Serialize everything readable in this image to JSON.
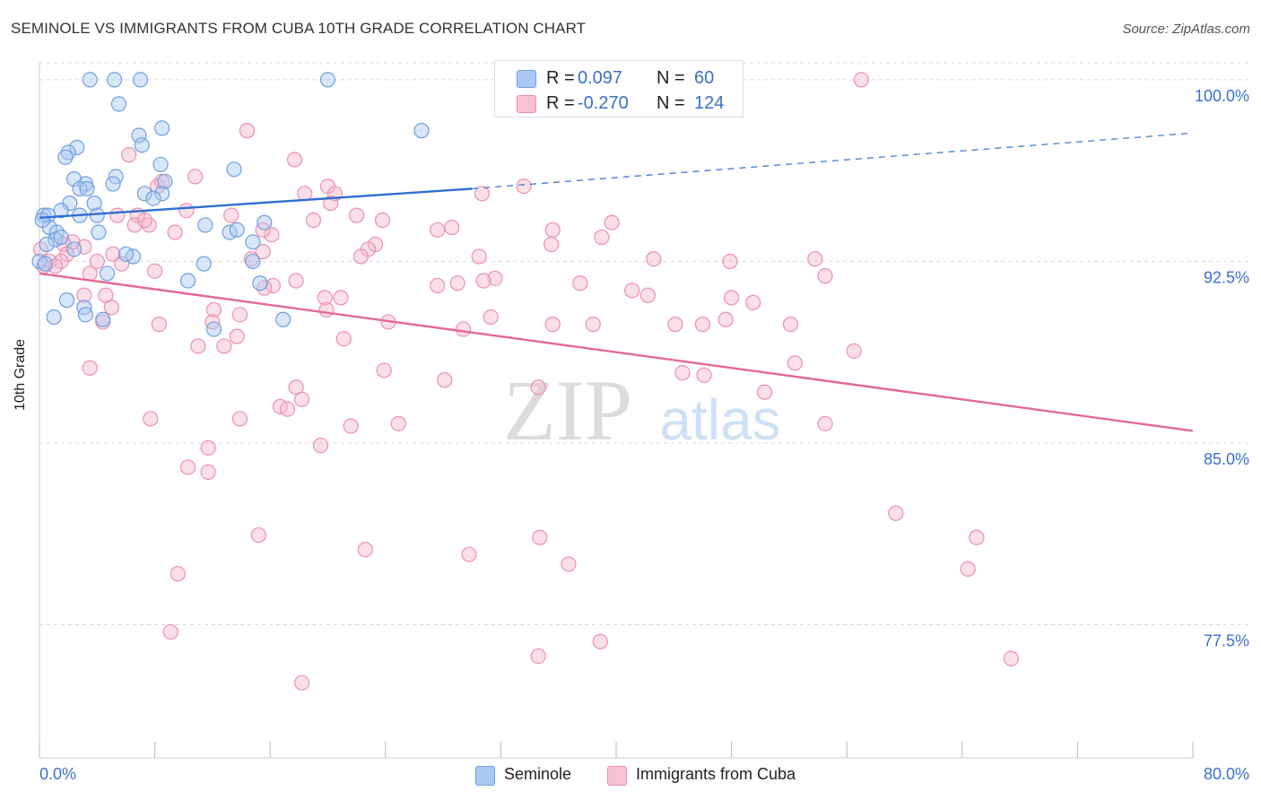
{
  "header": {
    "title": "SEMINOLE VS IMMIGRANTS FROM CUBA 10TH GRADE CORRELATION CHART",
    "source": "Source: ZipAtlas.com"
  },
  "watermark": {
    "zip": "ZIP",
    "atlas": "atlas"
  },
  "legend_top": {
    "rows": [
      {
        "r_label": "R =",
        "r_value": "0.097",
        "n_label": "N =",
        "n_value": "60"
      },
      {
        "r_label": "R =",
        "r_value": "-0.270",
        "n_label": "N =",
        "n_value": "124"
      }
    ]
  },
  "legend_bottom": {
    "items": [
      {
        "label": "Seminole"
      },
      {
        "label": "Immigrants from Cuba"
      }
    ]
  },
  "colors": {
    "blue_fill": "#a9c8f2",
    "blue_stroke": "#6e9fe0",
    "blue_line": "#2f6fd0",
    "pink_fill": "#f7b7cc",
    "pink_stroke": "#eb8fae",
    "pink_line": "#e3689a",
    "tick_label": "#3b6fce",
    "grid": "#d8d8d8"
  },
  "chart_data": {
    "type": "scatter",
    "title": "SEMINOLE VS IMMIGRANTS FROM CUBA 10TH GRADE CORRELATION CHART",
    "xlabel": "",
    "ylabel": "10th Grade",
    "xlim": [
      0,
      80
    ],
    "ylim": [
      72.0,
      100.7
    ],
    "x_tick_labels": [
      "0.0%",
      "80.0%"
    ],
    "y_ticks": [
      100.0,
      92.5,
      85.0,
      77.5
    ],
    "y_tick_labels": [
      "100.0%",
      "92.5%",
      "85.0%",
      "77.5%"
    ],
    "grid": "horizontal dashed",
    "legend_position": "top-center and bottom",
    "series": [
      {
        "name": "Seminole",
        "R": 0.097,
        "N": 60,
        "trend": {
          "x": [
            0.0,
            30.0,
            80.0
          ],
          "y": [
            94.3,
            95.5,
            97.8
          ],
          "solid_until_x": 30.0
        },
        "points": [
          [
            3.5,
            100.0
          ],
          [
            5.2,
            100.0
          ],
          [
            7.0,
            100.0
          ],
          [
            20.0,
            100.0
          ],
          [
            5.5,
            99.0
          ],
          [
            8.5,
            98.0
          ],
          [
            26.5,
            97.9
          ],
          [
            6.9,
            97.7
          ],
          [
            2.6,
            97.2
          ],
          [
            2.0,
            97.0
          ],
          [
            7.1,
            97.3
          ],
          [
            1.8,
            96.8
          ],
          [
            8.4,
            96.5
          ],
          [
            13.5,
            96.3
          ],
          [
            5.3,
            96.0
          ],
          [
            2.4,
            95.9
          ],
          [
            3.2,
            95.7
          ],
          [
            5.1,
            95.7
          ],
          [
            8.7,
            95.8
          ],
          [
            2.8,
            95.5
          ],
          [
            3.3,
            95.5
          ],
          [
            7.3,
            95.3
          ],
          [
            8.5,
            95.3
          ],
          [
            7.9,
            95.1
          ],
          [
            2.1,
            94.9
          ],
          [
            3.8,
            94.9
          ],
          [
            1.5,
            94.6
          ],
          [
            0.3,
            94.4
          ],
          [
            0.6,
            94.4
          ],
          [
            2.8,
            94.4
          ],
          [
            4.0,
            94.4
          ],
          [
            11.5,
            94.0
          ],
          [
            15.6,
            94.1
          ],
          [
            0.7,
            93.9
          ],
          [
            1.2,
            93.7
          ],
          [
            4.1,
            93.7
          ],
          [
            13.2,
            93.7
          ],
          [
            13.7,
            93.8
          ],
          [
            1.1,
            93.4
          ],
          [
            1.5,
            93.5
          ],
          [
            14.8,
            93.3
          ],
          [
            0.5,
            93.2
          ],
          [
            2.4,
            93.0
          ],
          [
            6.5,
            92.7
          ],
          [
            6.0,
            92.8
          ],
          [
            0.0,
            92.5
          ],
          [
            0.4,
            92.4
          ],
          [
            11.4,
            92.4
          ],
          [
            14.8,
            92.5
          ],
          [
            4.7,
            92.0
          ],
          [
            10.3,
            91.7
          ],
          [
            15.3,
            91.6
          ],
          [
            1.9,
            90.9
          ],
          [
            3.1,
            90.6
          ],
          [
            1.0,
            90.2
          ],
          [
            3.2,
            90.3
          ],
          [
            4.4,
            90.1
          ],
          [
            16.9,
            90.1
          ],
          [
            12.1,
            89.7
          ],
          [
            0.2,
            94.2
          ]
        ]
      },
      {
        "name": "Immigrants from Cuba",
        "R": -0.27,
        "N": 124,
        "trend": {
          "x": [
            0.0,
            80.0
          ],
          "y": [
            92.0,
            85.5
          ],
          "solid_until_x": 80.0
        },
        "points": [
          [
            57.0,
            100.0
          ],
          [
            14.4,
            97.9
          ],
          [
            6.2,
            96.9
          ],
          [
            17.7,
            96.7
          ],
          [
            10.8,
            96.0
          ],
          [
            8.2,
            95.6
          ],
          [
            8.5,
            95.8
          ],
          [
            20.0,
            95.6
          ],
          [
            33.6,
            95.6
          ],
          [
            18.4,
            95.3
          ],
          [
            20.5,
            95.3
          ],
          [
            30.7,
            95.3
          ],
          [
            20.2,
            94.9
          ],
          [
            10.2,
            94.6
          ],
          [
            5.4,
            94.4
          ],
          [
            6.8,
            94.4
          ],
          [
            13.3,
            94.4
          ],
          [
            22.0,
            94.4
          ],
          [
            19.0,
            94.2
          ],
          [
            23.8,
            94.2
          ],
          [
            6.6,
            94.0
          ],
          [
            7.6,
            94.0
          ],
          [
            7.3,
            94.2
          ],
          [
            27.6,
            93.8
          ],
          [
            35.6,
            93.8
          ],
          [
            39.7,
            94.1
          ],
          [
            28.6,
            93.9
          ],
          [
            16.1,
            93.6
          ],
          [
            9.4,
            93.7
          ],
          [
            15.5,
            93.8
          ],
          [
            39.0,
            93.5
          ],
          [
            2.3,
            93.3
          ],
          [
            1.7,
            93.2
          ],
          [
            3.1,
            93.1
          ],
          [
            23.3,
            93.2
          ],
          [
            22.8,
            93.0
          ],
          [
            35.5,
            93.2
          ],
          [
            0.1,
            93.0
          ],
          [
            5.1,
            92.8
          ],
          [
            1.9,
            92.8
          ],
          [
            14.7,
            92.6
          ],
          [
            30.5,
            92.7
          ],
          [
            22.3,
            92.7
          ],
          [
            15.5,
            92.9
          ],
          [
            42.6,
            92.6
          ],
          [
            47.9,
            92.5
          ],
          [
            0.7,
            92.5
          ],
          [
            4.0,
            92.5
          ],
          [
            1.5,
            92.5
          ],
          [
            5.7,
            92.4
          ],
          [
            1.1,
            92.3
          ],
          [
            8.0,
            92.1
          ],
          [
            0.3,
            92.3
          ],
          [
            53.8,
            92.6
          ],
          [
            3.5,
            92.0
          ],
          [
            31.6,
            91.8
          ],
          [
            54.5,
            91.9
          ],
          [
            27.6,
            91.5
          ],
          [
            29.0,
            91.6
          ],
          [
            30.8,
            91.7
          ],
          [
            17.8,
            91.7
          ],
          [
            37.5,
            91.6
          ],
          [
            16.2,
            91.5
          ],
          [
            41.1,
            91.3
          ],
          [
            15.6,
            91.4
          ],
          [
            19.8,
            91.0
          ],
          [
            20.9,
            91.0
          ],
          [
            42.2,
            91.1
          ],
          [
            48.0,
            91.0
          ],
          [
            3.1,
            91.1
          ],
          [
            4.6,
            91.1
          ],
          [
            49.5,
            90.8
          ],
          [
            5.0,
            90.6
          ],
          [
            12.1,
            90.5
          ],
          [
            13.9,
            90.3
          ],
          [
            19.9,
            90.5
          ],
          [
            31.3,
            90.2
          ],
          [
            4.4,
            90.0
          ],
          [
            12.0,
            90.0
          ],
          [
            24.2,
            90.0
          ],
          [
            47.6,
            90.1
          ],
          [
            8.3,
            89.9
          ],
          [
            38.4,
            89.9
          ],
          [
            35.6,
            89.9
          ],
          [
            44.1,
            89.9
          ],
          [
            46.0,
            89.9
          ],
          [
            52.1,
            89.9
          ],
          [
            13.7,
            89.4
          ],
          [
            21.1,
            89.3
          ],
          [
            29.4,
            89.7
          ],
          [
            11.0,
            89.0
          ],
          [
            12.8,
            89.0
          ],
          [
            56.5,
            88.8
          ],
          [
            3.5,
            88.1
          ],
          [
            23.9,
            88.0
          ],
          [
            44.6,
            87.9
          ],
          [
            52.4,
            88.3
          ],
          [
            28.1,
            87.6
          ],
          [
            46.1,
            87.8
          ],
          [
            17.8,
            87.3
          ],
          [
            34.6,
            87.3
          ],
          [
            50.3,
            87.1
          ],
          [
            16.7,
            86.5
          ],
          [
            17.2,
            86.4
          ],
          [
            18.2,
            86.8
          ],
          [
            7.7,
            86.0
          ],
          [
            13.9,
            86.0
          ],
          [
            21.6,
            85.7
          ],
          [
            24.9,
            85.8
          ],
          [
            54.5,
            85.8
          ],
          [
            11.7,
            84.8
          ],
          [
            19.5,
            84.9
          ],
          [
            10.3,
            84.0
          ],
          [
            11.7,
            83.8
          ],
          [
            59.4,
            82.1
          ],
          [
            15.2,
            81.2
          ],
          [
            34.7,
            81.1
          ],
          [
            65.0,
            81.1
          ],
          [
            22.6,
            80.6
          ],
          [
            29.8,
            80.4
          ],
          [
            36.7,
            80.0
          ],
          [
            64.4,
            79.8
          ],
          [
            9.6,
            79.6
          ],
          [
            9.1,
            77.2
          ],
          [
            38.9,
            76.8
          ],
          [
            34.6,
            76.2
          ],
          [
            67.4,
            76.1
          ],
          [
            18.2,
            75.1
          ]
        ]
      }
    ]
  }
}
